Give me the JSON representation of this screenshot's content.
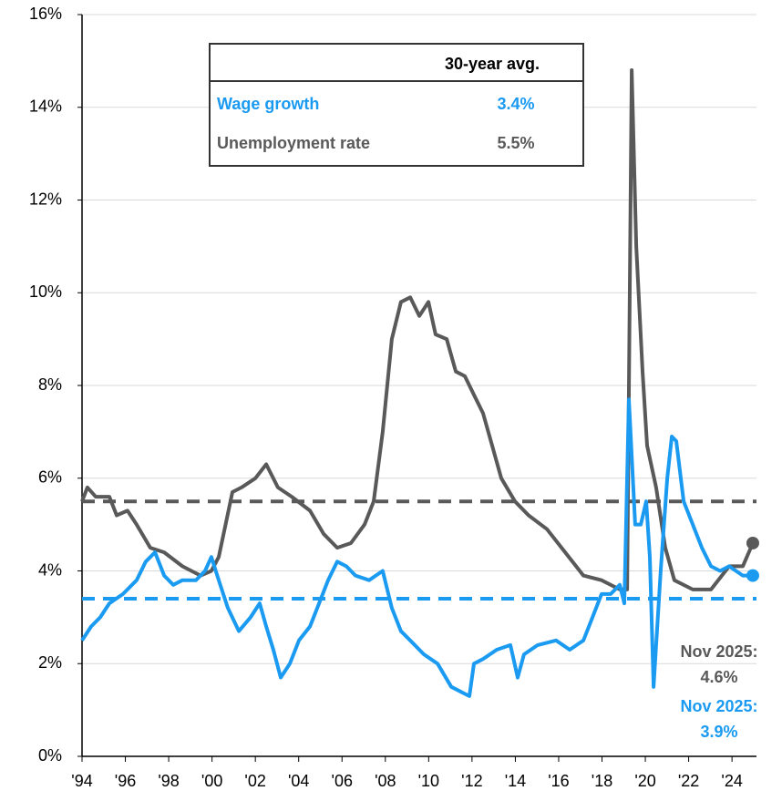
{
  "chart_data": {
    "type": "line",
    "table_header": "30-year avg.",
    "xlim": [
      1994,
      2025.13
    ],
    "xticks": [
      {
        "value": 1994,
        "label": "'94"
      },
      {
        "value": 1996,
        "label": "'96"
      },
      {
        "value": 1998,
        "label": "'98"
      },
      {
        "value": 2000,
        "label": "'00"
      },
      {
        "value": 2002,
        "label": "'02"
      },
      {
        "value": 2004,
        "label": "'04"
      },
      {
        "value": 2006,
        "label": "'06"
      },
      {
        "value": 2008,
        "label": "'08"
      },
      {
        "value": 2010,
        "label": "'10"
      },
      {
        "value": 2012,
        "label": "'12"
      },
      {
        "value": 2014,
        "label": "'14"
      },
      {
        "value": 2016,
        "label": "'16"
      },
      {
        "value": 2018,
        "label": "'18"
      },
      {
        "value": 2020,
        "label": "'20"
      },
      {
        "value": 2022,
        "label": "'22"
      },
      {
        "value": 2024,
        "label": "'24"
      }
    ],
    "ylim": [
      0,
      16
    ],
    "yticks": [
      {
        "value": 0,
        "label": "0%"
      },
      {
        "value": 2,
        "label": "2%"
      },
      {
        "value": 4,
        "label": "4%"
      },
      {
        "value": 6,
        "label": "6%"
      },
      {
        "value": 8,
        "label": "8%"
      },
      {
        "value": 10,
        "label": "10%"
      },
      {
        "value": 12,
        "label": "12%"
      },
      {
        "value": 14,
        "label": "14%"
      },
      {
        "value": 16,
        "label": "16%"
      }
    ],
    "grid": true,
    "series": [
      {
        "name": "Wage growth",
        "color": "#1a9af0",
        "average": 3.4,
        "average_label": "3.4%",
        "end_label": "Nov 2025:",
        "end_value_label": "3.9%",
        "x": [
          1994,
          1994.42,
          1994.84,
          1995.26,
          1995.89,
          1996.52,
          1996.94,
          1997.37,
          1997.79,
          1998.21,
          1998.63,
          1999.26,
          1999.68,
          1999.97,
          2000.31,
          2000.73,
          2001.24,
          2001.78,
          2002.2,
          2002.5,
          2002.83,
          2003.17,
          2003.59,
          2004.01,
          2004.52,
          2004.94,
          2005.36,
          2005.78,
          2006.2,
          2006.62,
          2007.25,
          2007.88,
          2008.3,
          2008.72,
          2009.15,
          2009.78,
          2010.41,
          2011.04,
          2011.46,
          2011.88,
          2012.09,
          2012.51,
          2013.14,
          2013.77,
          2014.11,
          2014.4,
          2015.03,
          2015.88,
          2016.51,
          2017.14,
          2017.56,
          2017.98,
          2018.4,
          2018.82,
          2019.03,
          2019.24,
          2019.53,
          2019.79,
          2020.04,
          2020.21,
          2020.38,
          2020.71,
          2021.01,
          2021.22,
          2021.43,
          2021.77,
          2022.19,
          2022.61,
          2023.03,
          2023.45,
          2023.87,
          2024.5,
          2024.96
        ],
        "values": [
          2.5,
          2.8,
          3.0,
          3.3,
          3.5,
          3.8,
          4.2,
          4.4,
          3.9,
          3.7,
          3.8,
          3.8,
          4.0,
          4.3,
          3.8,
          3.2,
          2.7,
          3.0,
          3.3,
          2.8,
          2.3,
          1.7,
          2.0,
          2.5,
          2.8,
          3.3,
          3.8,
          4.2,
          4.1,
          3.9,
          3.8,
          4.0,
          3.2,
          2.7,
          2.5,
          2.2,
          2.0,
          1.5,
          1.4,
          1.3,
          2.0,
          2.1,
          2.3,
          2.4,
          1.7,
          2.2,
          2.4,
          2.5,
          2.3,
          2.5,
          3.0,
          3.5,
          3.5,
          3.7,
          3.3,
          7.7,
          5.0,
          5.0,
          5.5,
          4.3,
          1.5,
          4.0,
          6.0,
          6.9,
          6.8,
          5.5,
          5.0,
          4.5,
          4.1,
          4.0,
          4.1,
          3.9,
          3.9
        ]
      },
      {
        "name": "Unemployment rate",
        "color": "#595959",
        "average": 5.5,
        "average_label": "5.5%",
        "end_label": "Nov 2025:",
        "end_value_label": "4.6%",
        "x": [
          1994,
          1994.25,
          1994.63,
          1995.26,
          1995.6,
          1996.1,
          1996.52,
          1997.15,
          1997.79,
          1998.63,
          1999.47,
          1999.97,
          2000.31,
          2000.94,
          2001.36,
          2002,
          2002.5,
          2003.04,
          2003.68,
          2004.52,
          2005.15,
          2005.78,
          2006.41,
          2007.04,
          2007.46,
          2007.88,
          2008.3,
          2008.72,
          2009.15,
          2009.57,
          2009.99,
          2010.32,
          2010.83,
          2011.25,
          2011.67,
          2012.09,
          2012.51,
          2012.93,
          2013.35,
          2013.98,
          2014.61,
          2015.46,
          2016.3,
          2017.14,
          2017.98,
          2018.82,
          2019.16,
          2019.37,
          2019.58,
          2019.87,
          2020.08,
          2020.5,
          2020.92,
          2021.34,
          2022.19,
          2023.03,
          2023.87,
          2024.5,
          2024.96
        ],
        "values": [
          5.5,
          5.8,
          5.6,
          5.6,
          5.2,
          5.3,
          5.0,
          4.5,
          4.4,
          4.1,
          3.9,
          4.0,
          4.3,
          5.7,
          5.8,
          6.0,
          6.3,
          5.8,
          5.6,
          5.3,
          4.8,
          4.5,
          4.6,
          5.0,
          5.5,
          7.0,
          9.0,
          9.8,
          9.9,
          9.5,
          9.8,
          9.1,
          9.0,
          8.3,
          8.2,
          7.8,
          7.4,
          6.7,
          6.0,
          5.5,
          5.2,
          4.9,
          4.4,
          3.9,
          3.8,
          3.6,
          3.6,
          14.8,
          11.0,
          8.3,
          6.7,
          5.8,
          4.5,
          3.8,
          3.6,
          3.6,
          4.1,
          4.1,
          4.6
        ]
      }
    ]
  }
}
